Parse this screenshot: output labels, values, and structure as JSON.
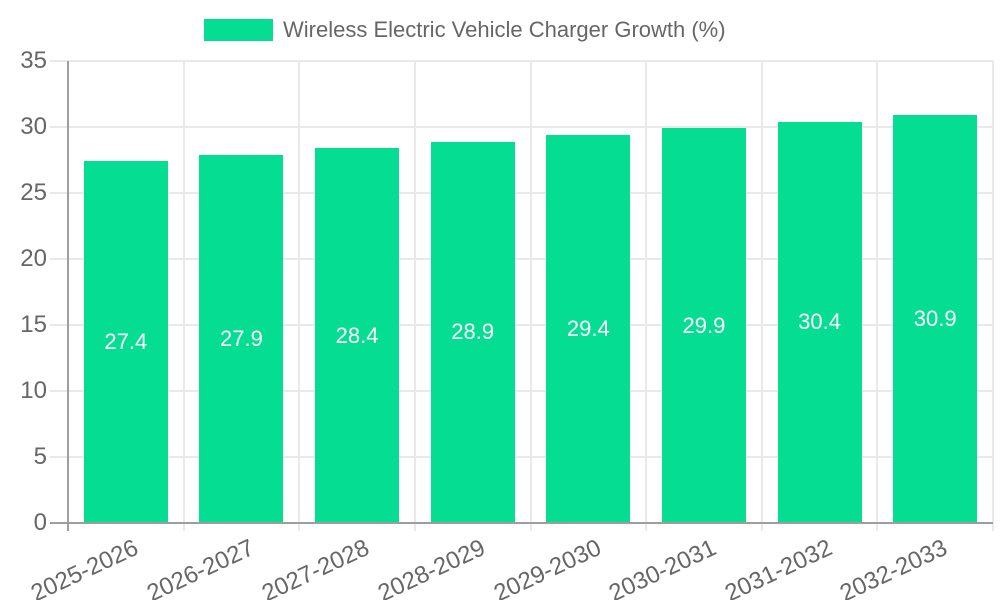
{
  "legend": {
    "label": "Wireless Electric Vehicle Charger Growth (%)"
  },
  "chart_data": {
    "type": "bar",
    "title": "Wireless Electric Vehicle Charger Growth (%)",
    "categories": [
      "2025-2026",
      "2026-2027",
      "2027-2028",
      "2028-2029",
      "2029-2030",
      "2030-2031",
      "2031-2032",
      "2032-2033"
    ],
    "values": [
      27.4,
      27.9,
      28.4,
      28.9,
      29.4,
      29.9,
      30.4,
      30.9
    ],
    "value_labels": [
      "27.4",
      "27.9",
      "28.4",
      "28.9",
      "29.4",
      "29.9",
      "30.4",
      "30.9"
    ],
    "xlabel": "",
    "ylabel": "",
    "ylim": [
      0,
      35
    ],
    "yticks": [
      0,
      5,
      10,
      15,
      20,
      25,
      30,
      35
    ],
    "grid": "on",
    "legend_position": "top",
    "colors": {
      "bar": "#05DE92",
      "grid": "#E9E9E9",
      "axis": "#9E9E9E",
      "tick_text": "#666666",
      "legend_text": "#666666",
      "value_text": "#FFFFFF"
    }
  }
}
